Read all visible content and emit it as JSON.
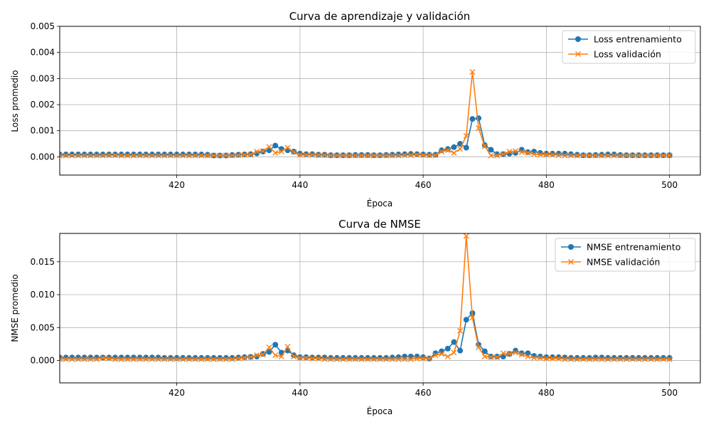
{
  "chart_data": [
    {
      "type": "line",
      "title": "Curva de aprendizaje y validación",
      "xlabel": "Época",
      "ylabel": "Loss promedio",
      "xlim": [
        401,
        505
      ],
      "ylim": [
        -0.0007,
        0.005
      ],
      "xticks": [
        "420",
        "440",
        "460",
        "480",
        "500"
      ],
      "xtick_values": [
        420,
        440,
        460,
        480,
        500
      ],
      "yticks": [
        "0.000",
        "0.001",
        "0.002",
        "0.003",
        "0.004",
        "0.005"
      ],
      "ytick_values": [
        0,
        0.001,
        0.002,
        0.003,
        0.004,
        0.005
      ],
      "grid": true,
      "legend_position": "top-right",
      "series": [
        {
          "name": "Loss entrenamiento",
          "color": "#1f77b4",
          "marker": "circle",
          "x_start": 400,
          "values": [
            9e-05,
            9e-05,
            9e-05,
            9e-05,
            9e-05,
            9e-05,
            9e-05,
            9e-05,
            9e-05,
            9e-05,
            9e-05,
            9e-05,
            9e-05,
            9e-05,
            9e-05,
            9e-05,
            9e-05,
            9e-05,
            9e-05,
            9e-05,
            9e-05,
            9e-05,
            9e-05,
            9e-05,
            9e-05,
            8e-05,
            5e-05,
            5e-05,
            5e-05,
            7e-05,
            8e-05,
            9e-05,
            0.0001,
            0.00013,
            0.0002,
            0.00025,
            0.00043,
            0.0003,
            0.00025,
            0.0002,
            0.00012,
            0.0001,
            0.0001,
            8e-05,
            8e-05,
            6e-05,
            6e-05,
            6e-05,
            6e-05,
            7e-05,
            7e-05,
            7e-05,
            6e-05,
            6e-05,
            7e-05,
            8e-05,
            9e-05,
            0.0001,
            0.00011,
            0.0001,
            9e-05,
            8e-05,
            8e-05,
            0.00025,
            0.0003,
            0.00037,
            0.0005,
            0.00035,
            0.00145,
            0.00148,
            0.00045,
            0.00027,
            0.0001,
            0.0001,
            0.00012,
            0.00015,
            0.00027,
            0.00018,
            0.0002,
            0.00015,
            0.00012,
            0.00012,
            0.00012,
            0.00012,
            0.0001,
            8e-05,
            6e-05,
            6e-05,
            7e-05,
            8e-05,
            9e-05,
            9e-05,
            7e-05,
            6e-05,
            6e-05,
            6e-05,
            6e-05,
            6e-05,
            6e-05,
            6e-05,
            6e-05
          ]
        },
        {
          "name": "Loss validación",
          "color": "#ff7f0e",
          "marker": "x",
          "x_start": 400,
          "values": [
            5e-05,
            5e-05,
            5e-05,
            5e-05,
            5e-05,
            5e-05,
            5e-05,
            5e-05,
            5e-05,
            6e-05,
            6e-05,
            5e-05,
            5e-05,
            5e-05,
            5e-05,
            5e-05,
            5e-05,
            5e-05,
            5e-05,
            5e-05,
            5e-05,
            5e-05,
            5e-05,
            5e-05,
            5e-05,
            5e-05,
            5e-05,
            5e-05,
            5e-05,
            5e-05,
            6e-05,
            7e-05,
            8e-05,
            0.0002,
            0.00022,
            0.00038,
            0.00015,
            0.0002,
            0.00035,
            0.00018,
            7e-05,
            7e-05,
            7e-05,
            6e-05,
            6e-05,
            5e-05,
            5e-05,
            5e-05,
            5e-05,
            5e-05,
            5e-05,
            5e-05,
            5e-05,
            5e-05,
            5e-05,
            5e-05,
            5e-05,
            6e-05,
            6e-05,
            8e-05,
            6e-05,
            6e-05,
            6e-05,
            0.0002,
            0.00025,
            0.00015,
            0.0003,
            0.0008,
            0.00325,
            0.0011,
            0.0004,
            5e-05,
            5e-05,
            0.0001,
            0.0002,
            0.00022,
            0.00018,
            0.00015,
            0.0001,
            8e-05,
            8e-05,
            8e-05,
            6e-05,
            5e-05,
            5e-05,
            5e-05,
            5e-05,
            5e-05,
            5e-05,
            5e-05,
            5e-05,
            5e-05,
            5e-05,
            5e-05,
            5e-05,
            5e-05,
            5e-05,
            5e-05,
            5e-05,
            5e-05,
            5e-05
          ]
        }
      ]
    },
    {
      "type": "line",
      "title": "Curva de NMSE",
      "xlabel": "Época",
      "ylabel": "NMSE promedio",
      "xlim": [
        401,
        505
      ],
      "ylim": [
        -0.0034,
        0.0193
      ],
      "xticks": [
        "420",
        "440",
        "460",
        "480",
        "500"
      ],
      "xtick_values": [
        420,
        440,
        460,
        480,
        500
      ],
      "yticks": [
        "0.000",
        "0.005",
        "0.010",
        "0.015"
      ],
      "ytick_values": [
        0,
        0.005,
        0.01,
        0.015
      ],
      "grid": true,
      "legend_position": "top-right",
      "series": [
        {
          "name": "NMSE entrenamiento",
          "color": "#1f77b4",
          "marker": "circle",
          "x_start": 400,
          "values": [
            0.00045,
            0.00045,
            0.00045,
            0.00045,
            0.00045,
            0.00045,
            0.00045,
            0.00045,
            0.00045,
            0.00045,
            0.00045,
            0.00045,
            0.00045,
            0.00045,
            0.00045,
            0.00045,
            0.00045,
            0.00045,
            0.0004,
            0.0004,
            0.0004,
            0.0004,
            0.0004,
            0.0004,
            0.0004,
            0.0004,
            0.0004,
            0.0004,
            0.0004,
            0.0004,
            0.00045,
            0.0005,
            0.00055,
            0.0006,
            0.001,
            0.0013,
            0.0024,
            0.0012,
            0.0015,
            0.0008,
            0.0005,
            0.0005,
            0.00045,
            0.00045,
            0.00045,
            0.0004,
            0.0004,
            0.0004,
            0.0004,
            0.0004,
            0.0004,
            0.0004,
            0.0004,
            0.0004,
            0.0004,
            0.00045,
            0.0005,
            0.0006,
            0.0006,
            0.0006,
            0.0005,
            0.0003,
            0.0011,
            0.0014,
            0.0018,
            0.0028,
            0.0015,
            0.0062,
            0.0072,
            0.0024,
            0.0014,
            0.0006,
            0.0006,
            0.0006,
            0.001,
            0.0015,
            0.0011,
            0.0011,
            0.0007,
            0.0006,
            0.0005,
            0.0005,
            0.0005,
            0.00045,
            0.0004,
            0.0004,
            0.0004,
            0.0004,
            0.00045,
            0.00045,
            0.0004,
            0.0004,
            0.0004,
            0.0004,
            0.0004,
            0.0004,
            0.0004,
            0.0004,
            0.0004,
            0.0004,
            0.0004
          ]
        },
        {
          "name": "NMSE validación",
          "color": "#ff7f0e",
          "marker": "x",
          "x_start": 400,
          "values": [
            0.0002,
            0.0002,
            0.0002,
            0.0002,
            0.0002,
            0.0002,
            0.0002,
            0.0002,
            0.0004,
            0.0003,
            0.0002,
            0.0002,
            0.0002,
            0.0002,
            0.0002,
            0.0002,
            0.0002,
            0.0002,
            0.0002,
            0.0002,
            0.0002,
            0.0002,
            0.0002,
            0.0002,
            0.0002,
            0.0002,
            0.0002,
            0.0002,
            0.0002,
            0.0002,
            0.0003,
            0.0004,
            0.0005,
            0.0008,
            0.0009,
            0.002,
            0.0008,
            0.0006,
            0.0021,
            0.0006,
            0.0004,
            0.0004,
            0.0003,
            0.0003,
            0.0002,
            0.0002,
            0.0002,
            0.0002,
            0.0002,
            0.0002,
            0.0002,
            0.0002,
            0.0002,
            0.0002,
            0.0002,
            0.0002,
            0.0002,
            0.0002,
            0.0002,
            0.0003,
            0.0003,
            0.0003,
            0.0008,
            0.001,
            0.0006,
            0.0012,
            0.0045,
            0.0189,
            0.0065,
            0.002,
            0.0006,
            0.0005,
            0.0005,
            0.0011,
            0.001,
            0.0012,
            0.0009,
            0.0006,
            0.0004,
            0.0004,
            0.0003,
            0.0003,
            0.0003,
            0.0002,
            0.0002,
            0.0002,
            0.0002,
            0.0002,
            0.0002,
            0.0002,
            0.0002,
            0.0002,
            0.0002,
            0.0002,
            0.0002,
            0.0002,
            0.0002,
            0.0002,
            0.0002,
            0.0002,
            0.0002
          ]
        }
      ]
    }
  ]
}
